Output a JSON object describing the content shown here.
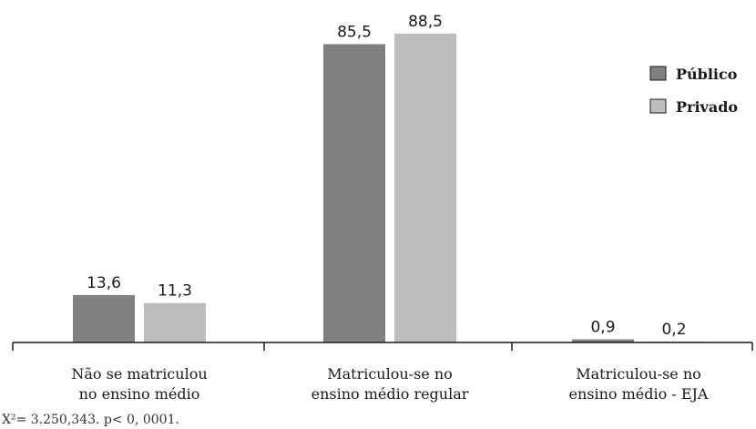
{
  "chart_data": {
    "type": "bar",
    "categories": [
      [
        "Não se matriculou",
        "no ensino médio"
      ],
      [
        "Matriculou-se no",
        "ensino médio regular"
      ],
      [
        "Matriculou-se no",
        "ensino médio - EJA"
      ]
    ],
    "series": [
      {
        "name": "Público",
        "values": [
          13.6,
          85.5,
          0.9
        ],
        "labels": [
          "13,6",
          "85,5",
          "0,9"
        ],
        "color": "#808083"
      },
      {
        "name": "Privado",
        "values": [
          11.3,
          88.5,
          0.2
        ],
        "labels": [
          "11,3",
          "88,5",
          "0,2"
        ],
        "color": "#bdbdbf"
      }
    ],
    "ylim": [
      0,
      88.5
    ],
    "grid": false,
    "legend": "top-right",
    "title": "",
    "xlabel": "",
    "ylabel": ""
  },
  "footnote": "X²= 3.250,343. p< 0, 0001."
}
